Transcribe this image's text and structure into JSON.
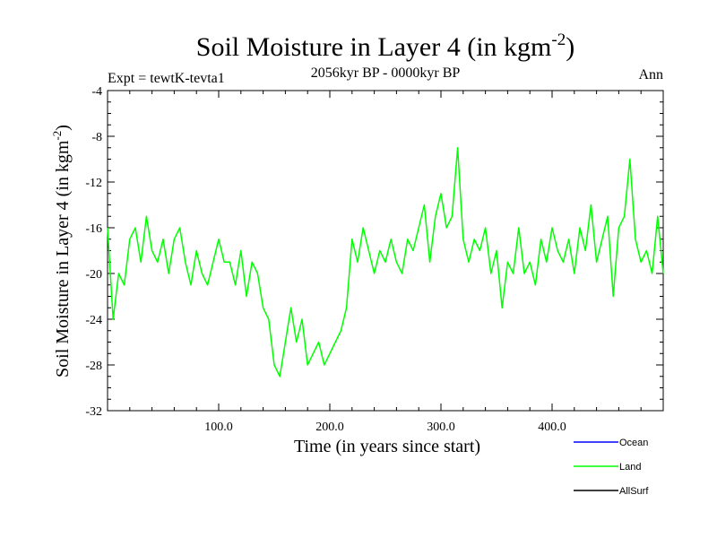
{
  "chart_data": {
    "type": "line",
    "title": "Soil Moisture in Layer 4 (in kgm",
    "title_sup": "-2",
    "title_close": ")",
    "subtitle": "2056kyr BP - 0000kyr BP",
    "left_label": "Expt = tewtK-tevta1",
    "right_label": "Ann",
    "xlabel": "Time (in years since start)",
    "ylabel": "Soil Moisture in Layer 4 (in kgm",
    "ylabel_sup": "-2",
    "ylabel_close": ")",
    "xlim": [
      0,
      500
    ],
    "ylim": [
      -32,
      -4
    ],
    "xticks": [
      100,
      200,
      300,
      400
    ],
    "xtick_labels": [
      "100.0",
      "200.0",
      "300.0",
      "400.0"
    ],
    "yticks": [
      -32,
      -28,
      -24,
      -20,
      -16,
      -12,
      -8,
      -4
    ],
    "ytick_labels": [
      "-32",
      "-28",
      "-24",
      "-20",
      "-16",
      "-12",
      "-8",
      "-4"
    ],
    "legend": [
      {
        "name": "Ocean",
        "color": "#0000ff"
      },
      {
        "name": "Land",
        "color": "#00ff00"
      },
      {
        "name": "AllSurf",
        "color": "#000000"
      }
    ],
    "series": [
      {
        "name": "Land",
        "color": "#00ff00",
        "x": [
          0,
          5,
          10,
          15,
          20,
          25,
          30,
          35,
          40,
          45,
          50,
          55,
          60,
          65,
          70,
          75,
          80,
          85,
          90,
          95,
          100,
          105,
          110,
          115,
          120,
          125,
          130,
          135,
          140,
          145,
          150,
          155,
          160,
          165,
          170,
          175,
          180,
          185,
          190,
          195,
          200,
          205,
          210,
          215,
          220,
          225,
          230,
          235,
          240,
          245,
          250,
          255,
          260,
          265,
          270,
          275,
          280,
          285,
          290,
          295,
          300,
          305,
          310,
          315,
          320,
          325,
          330,
          335,
          340,
          345,
          350,
          355,
          360,
          365,
          370,
          375,
          380,
          385,
          390,
          395,
          400,
          405,
          410,
          415,
          420,
          425,
          430,
          435,
          440,
          445,
          450,
          455,
          460,
          465,
          470,
          475,
          480,
          485,
          490,
          495,
          500
        ],
        "values": [
          -16,
          -24,
          -20,
          -21,
          -17,
          -16,
          -19,
          -15,
          -18,
          -19,
          -17,
          -20,
          -17,
          -16,
          -19,
          -21,
          -18,
          -20,
          -21,
          -19,
          -17,
          -19,
          -19,
          -21,
          -18,
          -22,
          -19,
          -20,
          -23,
          -24,
          -28,
          -29,
          -26,
          -23,
          -26,
          -24,
          -28,
          -27,
          -26,
          -28,
          -27,
          -26,
          -25,
          -23,
          -17,
          -19,
          -16,
          -18,
          -20,
          -18,
          -19,
          -17,
          -19,
          -20,
          -17,
          -18,
          -16,
          -14,
          -19,
          -15,
          -13,
          -16,
          -15,
          -9,
          -17,
          -19,
          -17,
          -18,
          -16,
          -20,
          -18,
          -23,
          -19,
          -20,
          -16,
          -20,
          -19,
          -21,
          -17,
          -19,
          -16,
          -18,
          -19,
          -17,
          -20,
          -16,
          -18,
          -14,
          -19,
          -17,
          -15,
          -22,
          -16,
          -15,
          -10,
          -17,
          -19,
          -18,
          -20,
          -15,
          -20
        ]
      },
      {
        "name": "Ocean",
        "color": "#0000ff",
        "x": [],
        "values": []
      },
      {
        "name": "AllSurf",
        "color": "#000000",
        "x": [],
        "values": []
      }
    ]
  }
}
